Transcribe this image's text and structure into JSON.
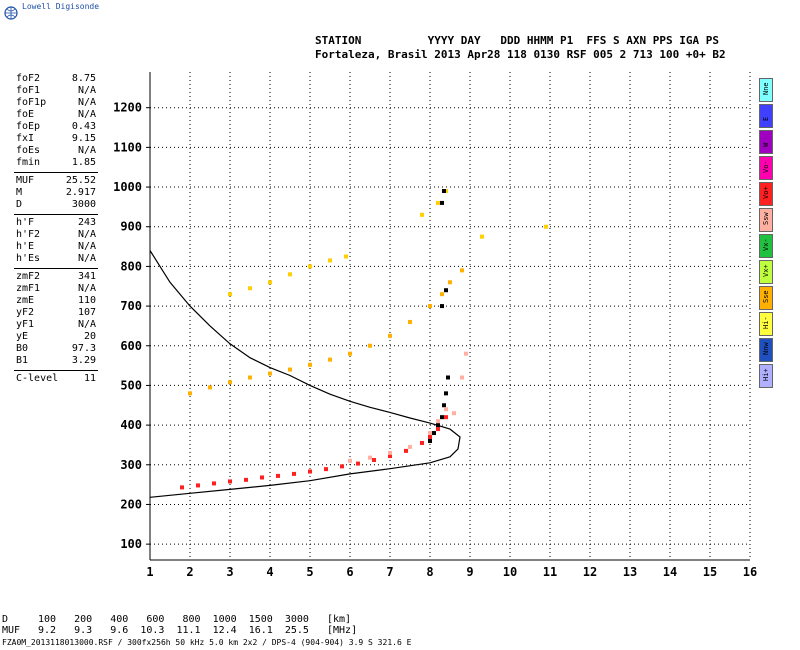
{
  "brand": "Lowell Digisonde",
  "header": {
    "line1": "STATION          YYYY DAY   DDD HHMM P1  FFS S AXN PPS IGA PS",
    "line2": "Fortaleza, Brasil 2013 Apr28 118 0130 RSF 005 2 713 100 +0+ B2"
  },
  "params": [
    {
      "k": "foF2",
      "v": "8.75"
    },
    {
      "k": "foF1",
      "v": "N/A"
    },
    {
      "k": "foF1p",
      "v": "N/A"
    },
    {
      "k": "foE",
      "v": "N/A"
    },
    {
      "k": "foEp",
      "v": "0.43"
    },
    {
      "k": "fxI",
      "v": "9.15"
    },
    {
      "k": "foEs",
      "v": "N/A"
    },
    {
      "k": "fmin",
      "v": "1.85"
    },
    {
      "k": "MUF",
      "v": "25.52"
    },
    {
      "k": "M",
      "v": "2.917"
    },
    {
      "k": "D",
      "v": "3000"
    },
    {
      "k": "h'F",
      "v": "243"
    },
    {
      "k": "h'F2",
      "v": "N/A"
    },
    {
      "k": "h'E",
      "v": "N/A"
    },
    {
      "k": "h'Es",
      "v": "N/A"
    },
    {
      "k": "zmF2",
      "v": "341"
    },
    {
      "k": "zmF1",
      "v": "N/A"
    },
    {
      "k": "zmE",
      "v": "110"
    },
    {
      "k": "yF2",
      "v": "107"
    },
    {
      "k": "yF1",
      "v": "N/A"
    },
    {
      "k": "yE",
      "v": "20"
    },
    {
      "k": "B0",
      "v": "97.3"
    },
    {
      "k": "B1",
      "v": "3.29"
    },
    {
      "k": "C-level",
      "v": "11"
    }
  ],
  "legend": [
    {
      "label": "Nne",
      "color": "#7fffff"
    },
    {
      "label": "E",
      "color": "#4040ff"
    },
    {
      "label": "W",
      "color": "#a000c0"
    },
    {
      "label": "Vo-",
      "color": "#ff00b0"
    },
    {
      "label": "Vo+",
      "color": "#ff2020"
    },
    {
      "label": "Ssw",
      "color": "#ffb0a0"
    },
    {
      "label": "Vx-",
      "color": "#20c040"
    },
    {
      "label": "Vx+",
      "color": "#c0ff40"
    },
    {
      "label": "Sse",
      "color": "#ffb000"
    },
    {
      "label": "Hi-",
      "color": "#ffff40"
    },
    {
      "label": "Nnw",
      "color": "#2050c0"
    },
    {
      "label": "Hi+",
      "color": "#b0b0ff"
    }
  ],
  "bottom": {
    "d_label": "D",
    "d_values": "100   200   400   600   800  1000  1500  3000   [km]",
    "muf_label": "MUF",
    "muf_values": "9.2   9.3   9.6  10.3  11.1  12.4  16.1  25.5   [MHz]",
    "footer": "FZA0M_2013118013000.RSF / 300fx256h 50 kHz 5.0 km 2x2 / DPS-4 (904-904)  3.9 S 321.6 E"
  },
  "chart_data": {
    "type": "scatter",
    "xlim": [
      1,
      16
    ],
    "ylim": [
      60,
      1290
    ],
    "x_ticks": [
      1,
      2,
      3,
      4,
      5,
      6,
      7,
      8,
      9,
      10,
      11,
      12,
      13,
      14,
      15,
      16
    ],
    "y_ticks": [
      100,
      200,
      300,
      400,
      500,
      600,
      700,
      800,
      900,
      1000,
      1100,
      1200
    ],
    "grid": "dotted",
    "series": [
      {
        "color": "#000000",
        "points": [
          [
            1.0,
            840
          ],
          [
            1.5,
            760
          ],
          [
            2.0,
            700
          ],
          [
            2.5,
            650
          ],
          [
            3.0,
            605
          ],
          [
            3.5,
            570
          ],
          [
            4.0,
            545
          ],
          [
            4.5,
            525
          ],
          [
            5.0,
            500
          ],
          [
            5.5,
            478
          ],
          [
            6.0,
            460
          ],
          [
            6.5,
            445
          ],
          [
            7.0,
            432
          ],
          [
            7.5,
            418
          ],
          [
            8.0,
            405
          ],
          [
            8.5,
            390
          ],
          [
            8.75,
            370
          ],
          [
            8.7,
            340
          ],
          [
            8.5,
            320
          ],
          [
            8.0,
            305
          ],
          [
            7.0,
            290
          ],
          [
            6.0,
            277
          ],
          [
            5.0,
            260
          ],
          [
            4.0,
            248
          ],
          [
            3.0,
            238
          ],
          [
            2.0,
            228
          ],
          [
            1.0,
            218
          ]
        ]
      },
      {
        "color": "#ff2020",
        "points": [
          [
            1.8,
            243
          ],
          [
            2.2,
            248
          ],
          [
            2.6,
            253
          ],
          [
            3.0,
            258
          ],
          [
            3.4,
            262
          ],
          [
            3.8,
            268
          ],
          [
            4.2,
            272
          ],
          [
            4.6,
            277
          ],
          [
            5.0,
            283
          ],
          [
            5.4,
            289
          ],
          [
            5.8,
            296
          ],
          [
            6.2,
            303
          ],
          [
            6.6,
            312
          ],
          [
            7.0,
            322
          ],
          [
            7.4,
            335
          ],
          [
            7.8,
            355
          ],
          [
            8.0,
            370
          ],
          [
            8.2,
            390
          ],
          [
            8.4,
            420
          ]
        ]
      },
      {
        "color": "#ffb000",
        "points": [
          [
            2.0,
            480
          ],
          [
            2.5,
            495
          ],
          [
            3.0,
            508
          ],
          [
            3.5,
            520
          ],
          [
            4.0,
            530
          ],
          [
            4.5,
            540
          ],
          [
            5.0,
            552
          ],
          [
            5.5,
            565
          ],
          [
            6.0,
            580
          ],
          [
            6.5,
            600
          ],
          [
            7.0,
            625
          ],
          [
            7.5,
            660
          ],
          [
            8.0,
            700
          ],
          [
            8.3,
            730
          ],
          [
            8.5,
            760
          ],
          [
            8.8,
            790
          ]
        ]
      },
      {
        "color": "#ffd000",
        "points": [
          [
            3.0,
            730
          ],
          [
            3.5,
            745
          ],
          [
            4.0,
            760
          ],
          [
            4.5,
            780
          ],
          [
            5.0,
            800
          ],
          [
            5.5,
            815
          ],
          [
            5.9,
            825
          ],
          [
            7.8,
            930
          ],
          [
            8.2,
            960
          ],
          [
            8.4,
            990
          ],
          [
            9.3,
            875
          ],
          [
            10.9,
            900
          ]
        ]
      },
      {
        "color": "#000000",
        "points": [
          [
            8.0,
            360
          ],
          [
            8.1,
            380
          ],
          [
            8.2,
            400
          ],
          [
            8.3,
            420
          ],
          [
            8.35,
            450
          ],
          [
            8.4,
            480
          ],
          [
            8.45,
            520
          ],
          [
            8.3,
            700
          ],
          [
            8.4,
            740
          ],
          [
            8.3,
            960
          ],
          [
            8.35,
            990
          ]
        ]
      },
      {
        "color": "#ffb0a0",
        "points": [
          [
            6.0,
            310
          ],
          [
            6.5,
            318
          ],
          [
            7.0,
            330
          ],
          [
            7.5,
            345
          ],
          [
            8.0,
            380
          ],
          [
            8.2,
            410
          ],
          [
            8.4,
            440
          ],
          [
            8.6,
            430
          ],
          [
            8.8,
            520
          ],
          [
            8.9,
            580
          ]
        ]
      }
    ]
  }
}
